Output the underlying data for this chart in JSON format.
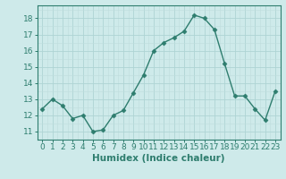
{
  "x": [
    0,
    1,
    2,
    3,
    4,
    5,
    6,
    7,
    8,
    9,
    10,
    11,
    12,
    13,
    14,
    15,
    16,
    17,
    18,
    19,
    20,
    21,
    22,
    23
  ],
  "y": [
    12.4,
    13.0,
    12.6,
    11.8,
    12.0,
    11.0,
    11.1,
    12.0,
    12.3,
    13.4,
    14.5,
    16.0,
    16.5,
    16.8,
    17.2,
    18.2,
    18.0,
    17.3,
    15.2,
    13.2,
    13.2,
    12.4,
    11.7,
    13.5
  ],
  "line_color": "#2e7d6e",
  "marker": "D",
  "marker_size": 2.5,
  "bg_color": "#ceeaea",
  "grid_color_major": "#aed4d4",
  "grid_color_minor": "#bedddd",
  "xlabel": "Humidex (Indice chaleur)",
  "ylim": [
    10.5,
    18.8
  ],
  "xlim": [
    -0.5,
    23.5
  ],
  "yticks": [
    11,
    12,
    13,
    14,
    15,
    16,
    17,
    18
  ],
  "xtick_labels": [
    "0",
    "1",
    "2",
    "3",
    "4",
    "5",
    "6",
    "7",
    "8",
    "9",
    "10",
    "11",
    "12",
    "13",
    "14",
    "15",
    "16",
    "17",
    "18",
    "19",
    "20",
    "21",
    "22",
    "23"
  ],
  "tick_color": "#2e7d6e",
  "label_fontsize": 7.5,
  "tick_fontsize": 6.5
}
